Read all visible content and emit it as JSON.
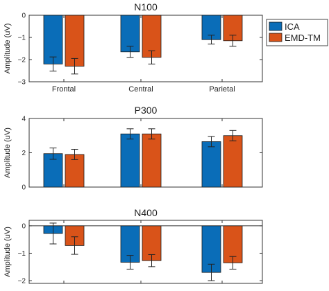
{
  "colors": {
    "ica": "#0a6db8",
    "emd": "#d95319",
    "axis": "#333333"
  },
  "legend": {
    "items": [
      "ICA",
      "EMD-TM"
    ]
  },
  "chart_data": [
    {
      "type": "bar",
      "title": "N100",
      "ylabel": "Amplitude (uV)",
      "ylim": [
        -3,
        0
      ],
      "yticks": [
        -3,
        -2,
        -1,
        0
      ],
      "categories": [
        "Frontal",
        "Central",
        "Parietal"
      ],
      "series": [
        {
          "name": "ICA",
          "values": [
            -2.2,
            -1.65,
            -1.1
          ],
          "errors": [
            0.32,
            0.25,
            0.2
          ]
        },
        {
          "name": "EMD-TM",
          "values": [
            -2.3,
            -1.9,
            -1.15
          ],
          "errors": [
            0.35,
            0.3,
            0.25
          ]
        }
      ],
      "legend": "top-right"
    },
    {
      "type": "bar",
      "title": "P300",
      "ylabel": "Amplitude (uV)",
      "ylim": [
        0,
        4
      ],
      "yticks": [
        0,
        2,
        4
      ],
      "categories": [
        "",
        "",
        ""
      ],
      "series": [
        {
          "name": "ICA",
          "values": [
            1.95,
            3.1,
            2.65
          ],
          "errors": [
            0.33,
            0.3,
            0.3
          ]
        },
        {
          "name": "EMD-TM",
          "values": [
            1.9,
            3.1,
            3.0
          ],
          "errors": [
            0.3,
            0.3,
            0.3
          ]
        }
      ]
    },
    {
      "type": "bar",
      "title": "N400",
      "ylabel": "Amplitude (uV)",
      "ylim": [
        -2.1,
        0.2
      ],
      "yticks": [
        -2,
        -1,
        0
      ],
      "categories": [
        "",
        "",
        ""
      ],
      "series": [
        {
          "name": "ICA",
          "values": [
            -0.28,
            -1.33,
            -1.7
          ],
          "errors": [
            0.38,
            0.25,
            0.3
          ]
        },
        {
          "name": "EMD-TM",
          "values": [
            -0.72,
            -1.27,
            -1.35
          ],
          "errors": [
            0.32,
            0.22,
            0.23
          ]
        }
      ]
    }
  ]
}
